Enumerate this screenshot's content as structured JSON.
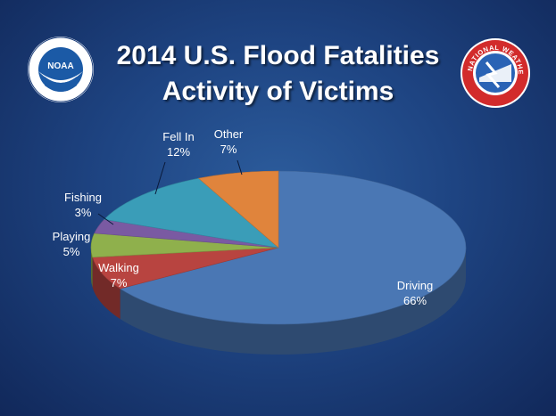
{
  "title_line1": "2014 U.S. Flood Fatalities",
  "title_line2": "Activity of Victims",
  "logos": {
    "left": {
      "text": "NOAA",
      "icon": "noaa-seal-icon"
    },
    "right": {
      "text": "NATIONAL WEATHER SERVICE",
      "icon": "nws-logo-icon"
    }
  },
  "chart_data": {
    "type": "pie",
    "title": "2014 U.S. Flood Fatalities Activity of Victims",
    "slices": [
      {
        "label": "Driving",
        "pct": "66%",
        "value": 66,
        "color": "#4a77b4"
      },
      {
        "label": "Walking",
        "pct": "7%",
        "value": 7,
        "color": "#b84440"
      },
      {
        "label": "Playing",
        "pct": "5%",
        "value": 5,
        "color": "#8fb04c"
      },
      {
        "label": "Fishing",
        "pct": "3%",
        "value": 3,
        "color": "#7a5aa2"
      },
      {
        "label": "Fell In",
        "pct": "12%",
        "value": 12,
        "color": "#3a9db8"
      },
      {
        "label": "Other",
        "pct": "7%",
        "value": 7,
        "color": "#e0843c"
      }
    ]
  }
}
